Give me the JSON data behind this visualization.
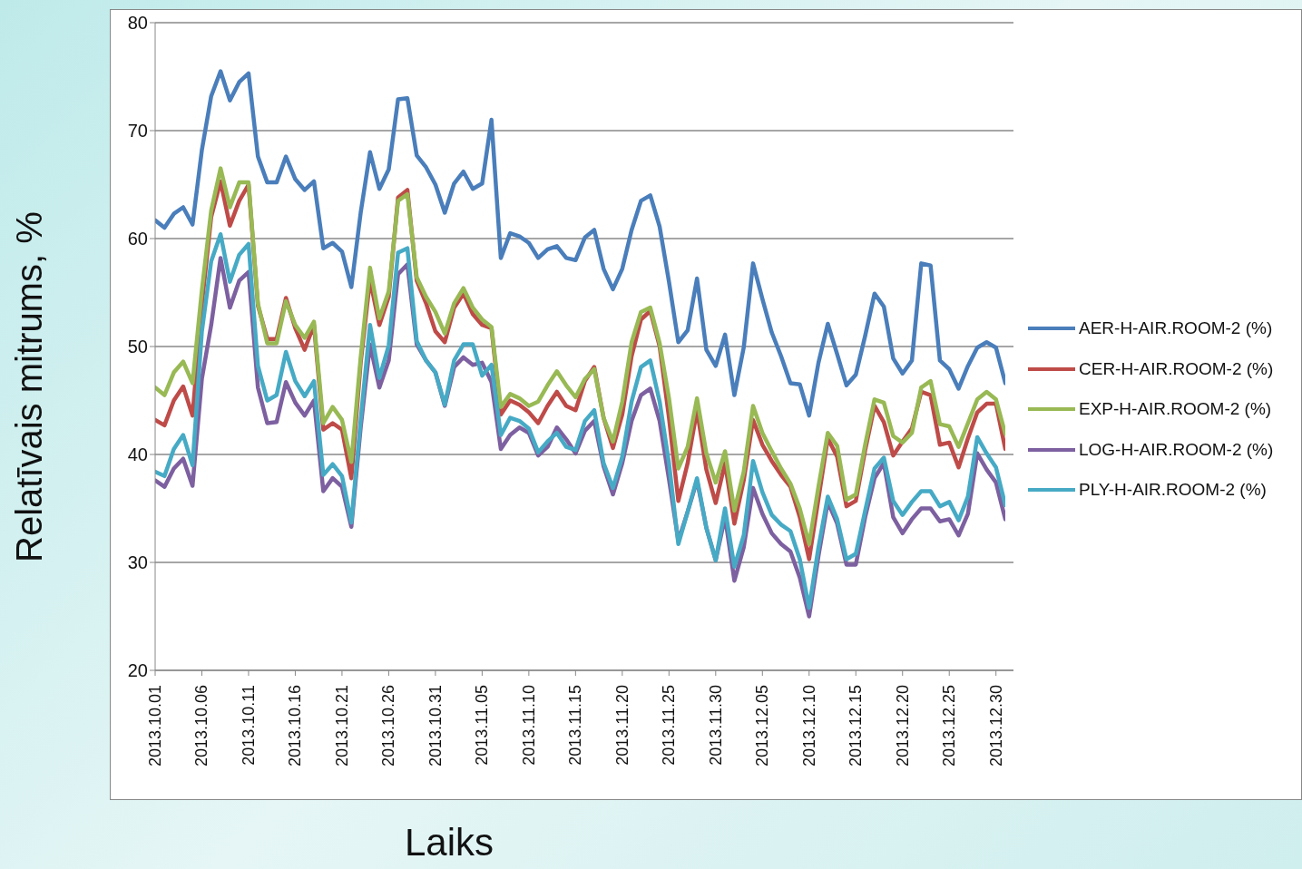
{
  "chart_data": {
    "type": "line",
    "xlabel": "Laiks",
    "ylabel": "Relatīvais mitrums, %",
    "categories": [
      "2013.10.01",
      null,
      null,
      null,
      null,
      "2013.10.06",
      null,
      null,
      null,
      null,
      "2013.10.11",
      null,
      null,
      null,
      null,
      "2013.10.16",
      null,
      null,
      null,
      null,
      "2013.10.21",
      null,
      null,
      null,
      null,
      "2013.10.26",
      null,
      null,
      null,
      null,
      "2013.10.31",
      null,
      null,
      null,
      null,
      "2013.11.05",
      null,
      null,
      null,
      null,
      "2013.11.10",
      null,
      null,
      null,
      null,
      "2013.11.15",
      null,
      null,
      null,
      null,
      "2013.11.20",
      null,
      null,
      null,
      null,
      "2013.11.25",
      null,
      null,
      null,
      null,
      "2013.11.30",
      null,
      null,
      null,
      null,
      "2013.12.05",
      null,
      null,
      null,
      null,
      "2013.12.10",
      null,
      null,
      null,
      null,
      "2013.12.15",
      null,
      null,
      null,
      null,
      "2013.12.20",
      null,
      null,
      null,
      null,
      "2013.12.25",
      null,
      null,
      null,
      null,
      "2013.12.30",
      null
    ],
    "series": [
      {
        "name": "AER-H-AIR.ROOM-2 (%)",
        "color": "#4a7ebb",
        "values": [
          61.7,
          61.0,
          62.3,
          62.9,
          61.3,
          68.2,
          73.2,
          75.5,
          72.8,
          74.5,
          75.3,
          67.6,
          65.2,
          65.2,
          67.6,
          65.5,
          64.5,
          65.3,
          59.1,
          59.6,
          58.8,
          55.5,
          62.4,
          68.0,
          64.6,
          66.4,
          72.9,
          73.0,
          67.7,
          66.6,
          65.0,
          62.4,
          65.1,
          66.2,
          64.6,
          65.1,
          71.0,
          58.2,
          60.5,
          60.2,
          59.6,
          58.2,
          59.0,
          59.3,
          58.2,
          58.0,
          60.1,
          60.8,
          57.2,
          55.3,
          57.2,
          60.8,
          63.5,
          64.0,
          61.1,
          56.0,
          50.4,
          51.5,
          56.3,
          49.7,
          48.2,
          51.1,
          45.5,
          49.9,
          57.7,
          54.4,
          51.3,
          49.1,
          46.6,
          46.5,
          43.6,
          48.5,
          52.1,
          49.3,
          46.4,
          47.4,
          51.0,
          54.9,
          53.7,
          48.9,
          47.5,
          48.7,
          57.7,
          57.5,
          48.7,
          47.9,
          46.1,
          48.2,
          49.9,
          50.4,
          49.9,
          46.6
        ]
      },
      {
        "name": "CER-H-AIR.ROOM-2 (%)",
        "color": "#be4b48",
        "values": [
          43.2,
          42.7,
          45.0,
          46.3,
          43.6,
          53.9,
          62.0,
          65.3,
          61.2,
          63.5,
          65.0,
          53.8,
          50.7,
          50.7,
          54.5,
          51.7,
          49.7,
          52.0,
          42.3,
          42.9,
          42.3,
          37.8,
          48.5,
          56.2,
          52.0,
          54.6,
          63.8,
          64.5,
          56.1,
          54.0,
          51.4,
          50.4,
          53.6,
          54.9,
          53.0,
          52.0,
          51.7,
          43.7,
          45.0,
          44.6,
          43.9,
          42.9,
          44.5,
          45.8,
          44.5,
          44.1,
          46.8,
          48.1,
          43.4,
          40.6,
          43.7,
          49.1,
          52.5,
          53.3,
          50.0,
          43.4,
          35.7,
          39.2,
          44.1,
          38.6,
          35.5,
          39.2,
          33.6,
          37.6,
          43.2,
          40.9,
          39.4,
          38.1,
          37.0,
          34.2,
          30.3,
          35.9,
          41.5,
          39.8,
          35.2,
          35.7,
          40.4,
          44.5,
          43.0,
          39.9,
          41.2,
          42.4,
          45.8,
          45.5,
          40.9,
          41.1,
          38.8,
          41.5,
          43.9,
          44.7,
          44.7,
          40.5
        ]
      },
      {
        "name": "EXP-H-AIR.ROOM-2 (%)",
        "color": "#98b954",
        "values": [
          46.2,
          45.5,
          47.6,
          48.6,
          46.6,
          55.2,
          62.6,
          66.5,
          62.9,
          65.2,
          65.2,
          54.0,
          50.3,
          50.3,
          54.2,
          52.0,
          50.8,
          52.3,
          42.9,
          44.4,
          43.2,
          39.3,
          49.0,
          57.3,
          52.6,
          55.1,
          63.5,
          64.1,
          56.4,
          54.6,
          53.2,
          51.2,
          54.0,
          55.4,
          53.6,
          52.5,
          51.8,
          44.4,
          45.6,
          45.2,
          44.5,
          44.9,
          46.4,
          47.7,
          46.4,
          45.3,
          47.0,
          47.9,
          43.4,
          41.2,
          44.9,
          50.4,
          53.2,
          53.6,
          50.3,
          45.2,
          38.7,
          40.7,
          45.2,
          40.1,
          37.4,
          40.3,
          34.8,
          38.4,
          44.5,
          42.0,
          40.3,
          38.7,
          37.3,
          35.0,
          31.7,
          37.0,
          42.0,
          40.8,
          35.8,
          36.3,
          40.9,
          45.1,
          44.8,
          41.7,
          41.1,
          42.0,
          46.2,
          46.8,
          42.8,
          42.6,
          40.7,
          42.9,
          45.1,
          45.8,
          45.1,
          41.9
        ]
      },
      {
        "name": "LOG-H-AIR.ROOM-2 (%)",
        "color": "#7d60a0",
        "values": [
          37.6,
          37.0,
          38.7,
          39.6,
          37.1,
          47.0,
          52.0,
          58.2,
          53.6,
          56.1,
          56.9,
          46.2,
          42.9,
          43.0,
          46.7,
          44.8,
          43.6,
          45.0,
          36.6,
          37.8,
          37.0,
          33.3,
          42.5,
          50.2,
          46.2,
          48.7,
          56.7,
          57.6,
          50.2,
          48.7,
          47.6,
          44.5,
          48.1,
          49.0,
          48.3,
          48.5,
          46.7,
          40.5,
          41.8,
          42.5,
          42.0,
          39.9,
          40.7,
          42.5,
          41.4,
          40.1,
          42.2,
          43.1,
          38.9,
          36.3,
          39.2,
          43.1,
          45.5,
          46.1,
          43.1,
          37.7,
          32.0,
          34.7,
          37.6,
          33.2,
          30.2,
          34.2,
          28.3,
          31.4,
          36.9,
          34.5,
          32.7,
          31.7,
          31.0,
          28.6,
          25.0,
          30.6,
          35.6,
          33.6,
          29.8,
          29.8,
          34.2,
          37.8,
          39.2,
          34.2,
          32.7,
          34.0,
          35.0,
          35.0,
          33.8,
          34.0,
          32.5,
          34.5,
          40.1,
          38.6,
          37.4,
          34.0
        ]
      },
      {
        "name": "PLY-H-AIR.ROOM-2 (%)",
        "color": "#46aac5",
        "values": [
          38.4,
          38.0,
          40.5,
          41.8,
          39.0,
          51.4,
          57.9,
          60.4,
          56.0,
          58.5,
          59.5,
          48.2,
          45.0,
          45.5,
          49.5,
          46.8,
          45.4,
          46.8,
          38.1,
          39.1,
          38.0,
          33.7,
          43.2,
          52.0,
          47.1,
          50.1,
          58.7,
          59.1,
          50.5,
          48.7,
          47.6,
          44.6,
          48.7,
          50.2,
          50.2,
          47.3,
          48.3,
          41.8,
          43.4,
          43.1,
          42.4,
          40.2,
          41.2,
          42.0,
          40.7,
          40.4,
          43.1,
          44.1,
          39.2,
          36.9,
          39.8,
          44.9,
          48.1,
          48.7,
          44.9,
          39.2,
          31.7,
          34.7,
          37.8,
          33.2,
          30.2,
          35.0,
          29.6,
          32.5,
          39.4,
          36.5,
          34.4,
          33.5,
          32.9,
          30.3,
          25.8,
          31.4,
          36.1,
          34.0,
          30.3,
          30.8,
          34.8,
          38.7,
          39.7,
          35.7,
          34.4,
          35.6,
          36.6,
          36.6,
          35.2,
          35.6,
          33.9,
          36.1,
          41.6,
          40.1,
          38.8,
          35.3
        ]
      }
    ],
    "ylim": [
      20,
      80
    ],
    "yticks": [
      20,
      30,
      40,
      50,
      60,
      70,
      80
    ],
    "grid": "y",
    "legend": "right",
    "marker": "none",
    "line_style": "solid"
  }
}
